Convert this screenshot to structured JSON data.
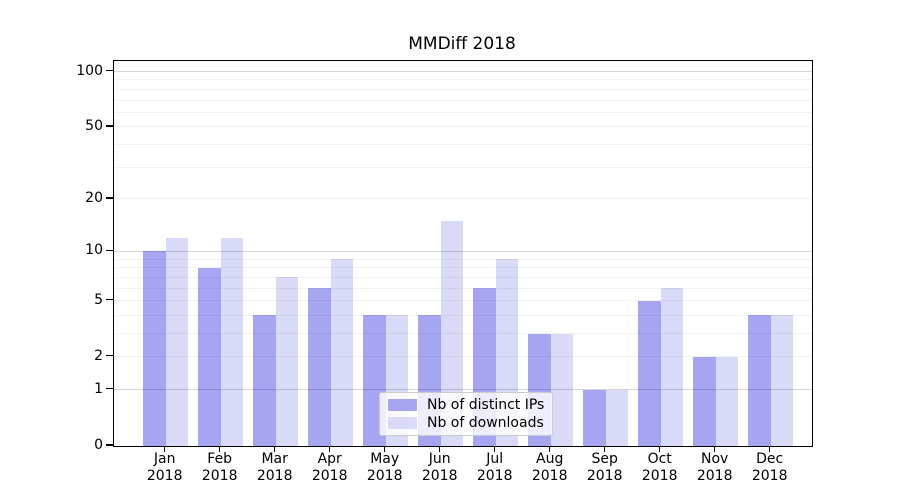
{
  "chart_data": {
    "type": "bar",
    "title": "MMDiff 2018",
    "categories": [
      "Jan 2018",
      "Feb 2018",
      "Mar 2018",
      "Apr 2018",
      "May 2018",
      "Jun 2018",
      "Jul 2018",
      "Aug 2018",
      "Sep 2018",
      "Oct 2018",
      "Nov 2018",
      "Dec 2018"
    ],
    "x_tick_month": [
      "Jan",
      "Feb",
      "Mar",
      "Apr",
      "May",
      "Jun",
      "Jul",
      "Aug",
      "Sep",
      "Oct",
      "Nov",
      "Dec"
    ],
    "x_tick_year": "2018",
    "series": [
      {
        "name": "Nb of distinct IPs",
        "color": "#a5a5f2",
        "values": [
          10,
          8,
          4,
          6,
          4,
          4,
          6,
          3,
          1,
          5,
          2,
          4
        ]
      },
      {
        "name": "Nb of downloads",
        "color": "#d9d9f8",
        "values": [
          12,
          12,
          7,
          9,
          4,
          15,
          9,
          3,
          1,
          6,
          2,
          4
        ]
      }
    ],
    "xlabel": "",
    "ylabel": "",
    "yscale": "log1p",
    "ylim": [
      0,
      113
    ],
    "y_ticks": [
      0,
      1,
      2,
      5,
      10,
      20,
      50,
      100
    ],
    "grid": true,
    "grid_major": [
      1,
      10,
      100
    ],
    "grid_minor": [
      2,
      3,
      4,
      5,
      6,
      7,
      8,
      9,
      20,
      30,
      40,
      50,
      60,
      70,
      80,
      90
    ],
    "legend": {
      "position": "lower-center",
      "entries": [
        "Nb of distinct IPs",
        "Nb of downloads"
      ]
    }
  }
}
